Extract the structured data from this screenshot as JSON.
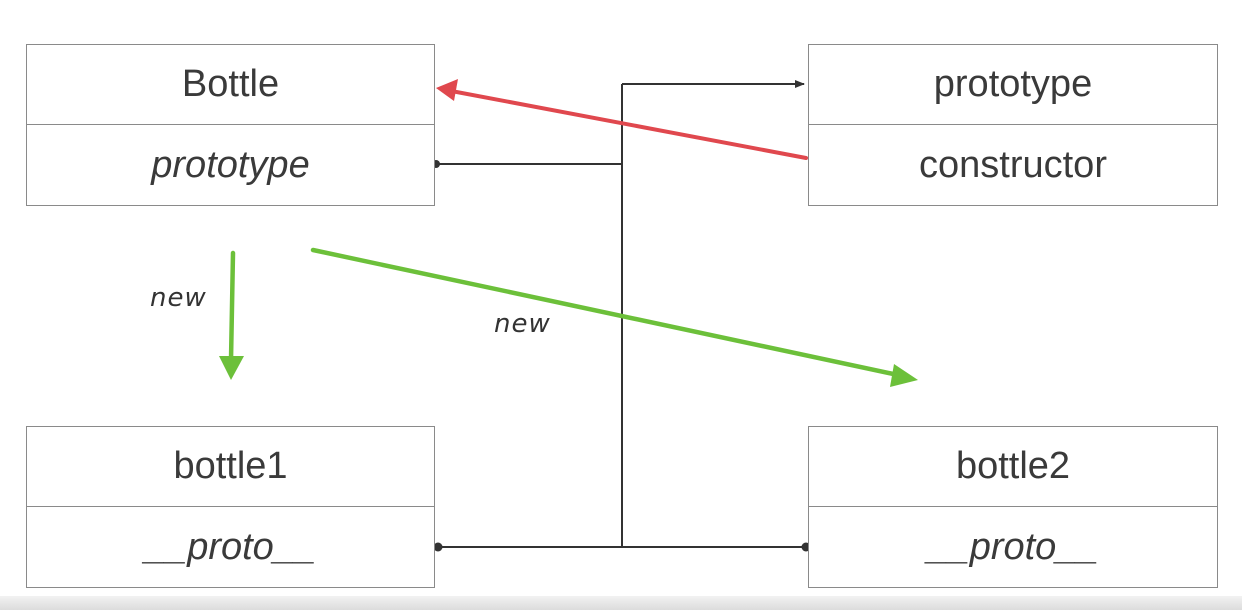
{
  "boxes": {
    "bottle_fn": {
      "title": "Bottle",
      "field": "prototype"
    },
    "proto_obj": {
      "title": "prototype",
      "field": "constructor"
    },
    "bottle1": {
      "title": "bottle1",
      "field": "__proto__"
    },
    "bottle2": {
      "title": "bottle2",
      "field": "__proto__"
    }
  },
  "annotations": {
    "new_left": "new",
    "new_middle": "new"
  },
  "colors": {
    "line": "#333333",
    "red_arrow": "#e0484e",
    "green_arrow": "#6cc03a",
    "border": "#8a8a8a"
  }
}
